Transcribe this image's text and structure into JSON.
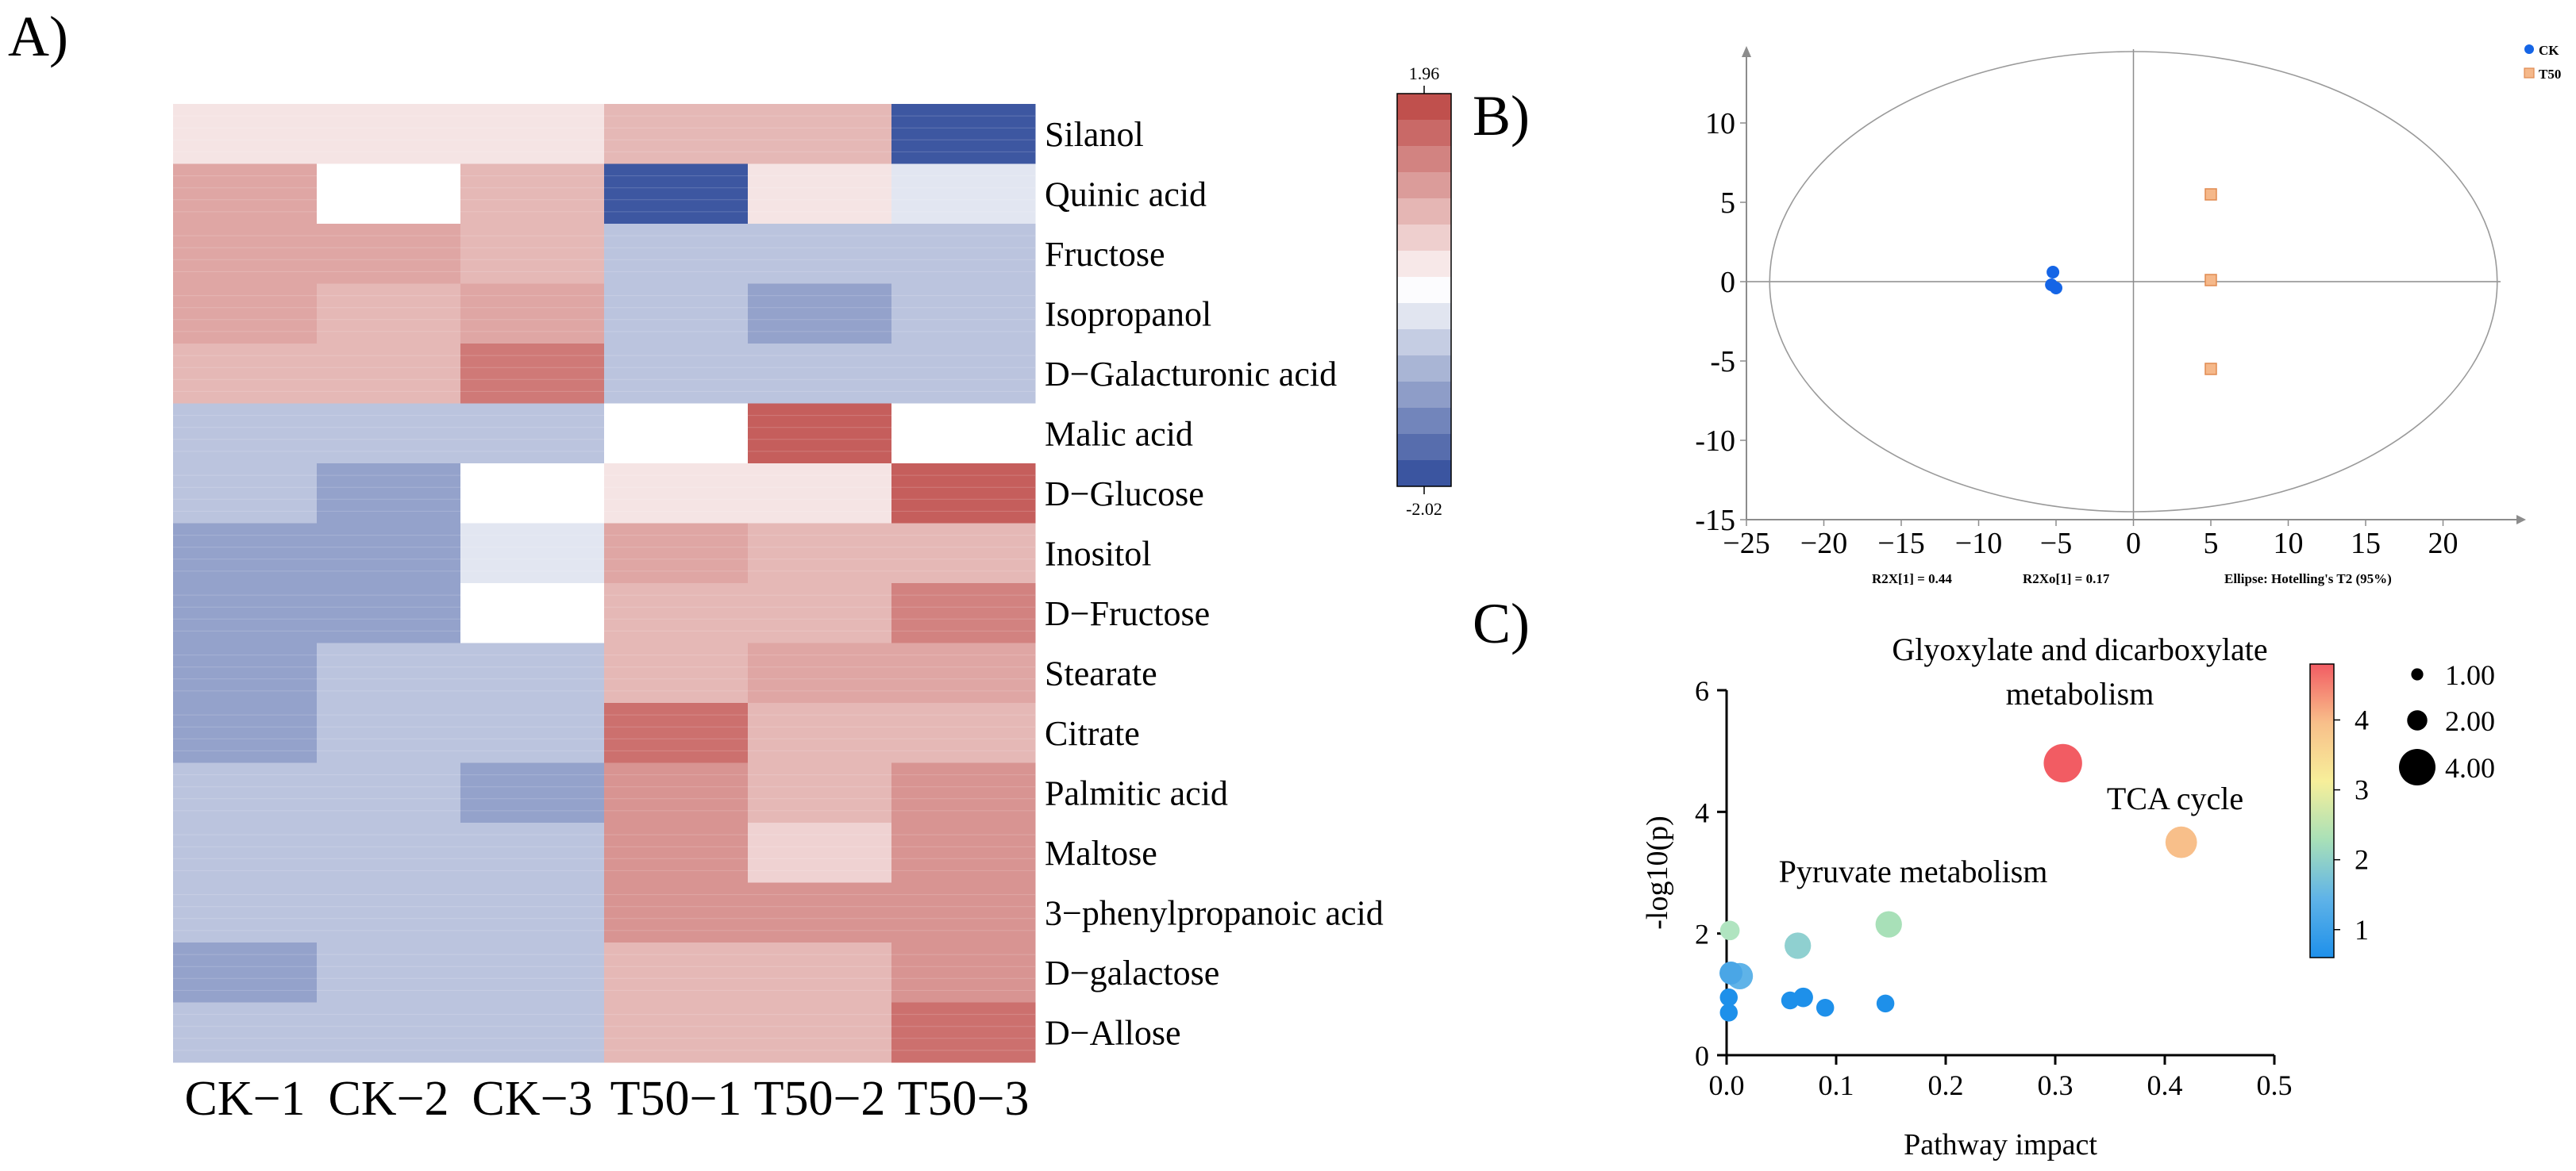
{
  "panels": {
    "a": "A)",
    "b": "B)",
    "c": "C)"
  },
  "chart_data": [
    {
      "type": "heatmap",
      "title": "",
      "rows": [
        "Silanol",
        "Quinic acid",
        "Fructose",
        "Isopropanol",
        "D−Galacturonic acid",
        "Malic acid",
        "D−Glucose",
        "Inositol",
        "D−Fructose",
        "Stearate",
        "Citrate",
        "Palmitic acid",
        "Maltose",
        "3−phenylpropanoic acid",
        "D−galactose",
        "D−Allose"
      ],
      "columns": [
        "CK−1",
        "CK−2",
        "CK−3",
        "T50−1",
        "T50−2",
        "T50−3"
      ],
      "values": [
        [
          0.3,
          0.3,
          0.3,
          0.8,
          0.8,
          -2.0
        ],
        [
          1.0,
          0.0,
          0.8,
          -2.0,
          0.3,
          -0.3
        ],
        [
          1.0,
          1.0,
          0.8,
          -0.7,
          -0.7,
          -0.7
        ],
        [
          1.0,
          0.8,
          1.0,
          -0.7,
          -1.1,
          -0.7
        ],
        [
          0.8,
          0.8,
          1.5,
          -0.7,
          -0.7,
          -0.7
        ],
        [
          -0.7,
          -0.7,
          -0.7,
          0.0,
          1.8,
          0.0
        ],
        [
          -0.7,
          -1.1,
          0.0,
          0.3,
          0.3,
          1.8
        ],
        [
          -1.1,
          -1.1,
          -0.3,
          1.0,
          0.8,
          0.8
        ],
        [
          -1.1,
          -1.1,
          0.0,
          0.8,
          0.8,
          1.4
        ],
        [
          -1.1,
          -0.7,
          -0.7,
          0.8,
          1.0,
          1.0
        ],
        [
          -1.1,
          -0.7,
          -0.7,
          1.6,
          0.8,
          0.8
        ],
        [
          -0.7,
          -0.7,
          -1.1,
          1.2,
          0.8,
          1.2
        ],
        [
          -0.7,
          -0.7,
          -0.7,
          1.2,
          0.5,
          1.2
        ],
        [
          -0.7,
          -0.7,
          -0.7,
          1.2,
          1.2,
          1.2
        ],
        [
          -1.1,
          -0.7,
          -0.7,
          0.8,
          0.8,
          1.2
        ],
        [
          -0.7,
          -0.7,
          -0.7,
          0.8,
          0.8,
          1.6
        ]
      ],
      "color_scale": {
        "min": -2.02,
        "max": 1.96,
        "min_label": "-2.02",
        "max_label": "1.96",
        "low_color": "#3b55a0",
        "mid_color": "#ffffff",
        "high_color": "#c0504d"
      }
    },
    {
      "type": "scatter",
      "title": "",
      "xlim": [
        -25,
        25
      ],
      "ylim": [
        -15,
        15
      ],
      "x_ticks": [
        -25,
        -20,
        -15,
        -10,
        -5,
        0,
        5,
        10,
        15,
        20
      ],
      "y_ticks": [
        -15,
        -10,
        -5,
        0,
        5,
        10
      ],
      "series": [
        {
          "name": "CK",
          "color": "#1565e6",
          "marker": "circle",
          "points": [
            [
              -5.2,
              0.6
            ],
            [
              -5.3,
              -0.2
            ],
            [
              -5.0,
              -0.4
            ]
          ]
        },
        {
          "name": "T50",
          "color": "#f5b88a",
          "marker": "square",
          "points": [
            [
              5.0,
              5.5
            ],
            [
              5.0,
              0.1
            ],
            [
              5.0,
              -5.5
            ]
          ]
        }
      ],
      "ellipse": {
        "rx": 23.5,
        "ry": 14.5
      },
      "footnotes": [
        "R2X[1] = 0.44",
        "R2Xo[1] = 0.17",
        "Ellipse: Hotelling's T2 (95%)"
      ]
    },
    {
      "type": "scatter",
      "title": "",
      "xlabel": "Pathway impact",
      "ylabel": "-log10(p)",
      "xlim": [
        0,
        0.5
      ],
      "ylim": [
        0,
        6
      ],
      "x_ticks": [
        "0.0",
        "0.1",
        "0.2",
        "0.3",
        "0.4",
        "0.5"
      ],
      "y_ticks": [
        "0",
        "2",
        "4",
        "6"
      ],
      "points": [
        {
          "x": 0.307,
          "y": 4.8,
          "size": 4.0,
          "color": "#f25c63"
        },
        {
          "x": 0.415,
          "y": 3.5,
          "size": 3.2,
          "color": "#f8bf8a"
        },
        {
          "x": 0.148,
          "y": 2.15,
          "size": 2.6,
          "color": "#a8e0b8"
        },
        {
          "x": 0.065,
          "y": 1.8,
          "size": 2.6,
          "color": "#8fd0d0"
        },
        {
          "x": 0.003,
          "y": 2.05,
          "size": 1.8,
          "color": "#b0e4c0"
        },
        {
          "x": 0.012,
          "y": 1.3,
          "size": 2.6,
          "color": "#5fb3e8"
        },
        {
          "x": 0.004,
          "y": 1.35,
          "size": 2.2,
          "color": "#4aa6e6"
        },
        {
          "x": 0.07,
          "y": 0.95,
          "size": 1.8,
          "color": "#1e90ea"
        },
        {
          "x": 0.058,
          "y": 0.9,
          "size": 1.6,
          "color": "#1e90ea"
        },
        {
          "x": 0.09,
          "y": 0.78,
          "size": 1.6,
          "color": "#1e90ea"
        },
        {
          "x": 0.145,
          "y": 0.85,
          "size": 1.6,
          "color": "#1e90ea"
        },
        {
          "x": 0.002,
          "y": 0.95,
          "size": 1.6,
          "color": "#1e90ea"
        },
        {
          "x": 0.002,
          "y": 0.7,
          "size": 1.6,
          "color": "#1e90ea"
        }
      ],
      "annotations": [
        "Glyoxylate and dicarboxylate",
        "metabolism",
        "TCA cycle",
        "Pyruvate metabolism"
      ],
      "size_legend": [
        {
          "label": "1.00",
          "size": 1.0
        },
        {
          "label": "2.00",
          "size": 2.0
        },
        {
          "label": "4.00",
          "size": 4.0
        }
      ],
      "color_legend": {
        "min": 0.6,
        "max": 4.8,
        "ticks": [
          "1",
          "2",
          "3",
          "4"
        ],
        "tick_values": [
          1,
          2,
          3,
          4
        ]
      }
    }
  ]
}
